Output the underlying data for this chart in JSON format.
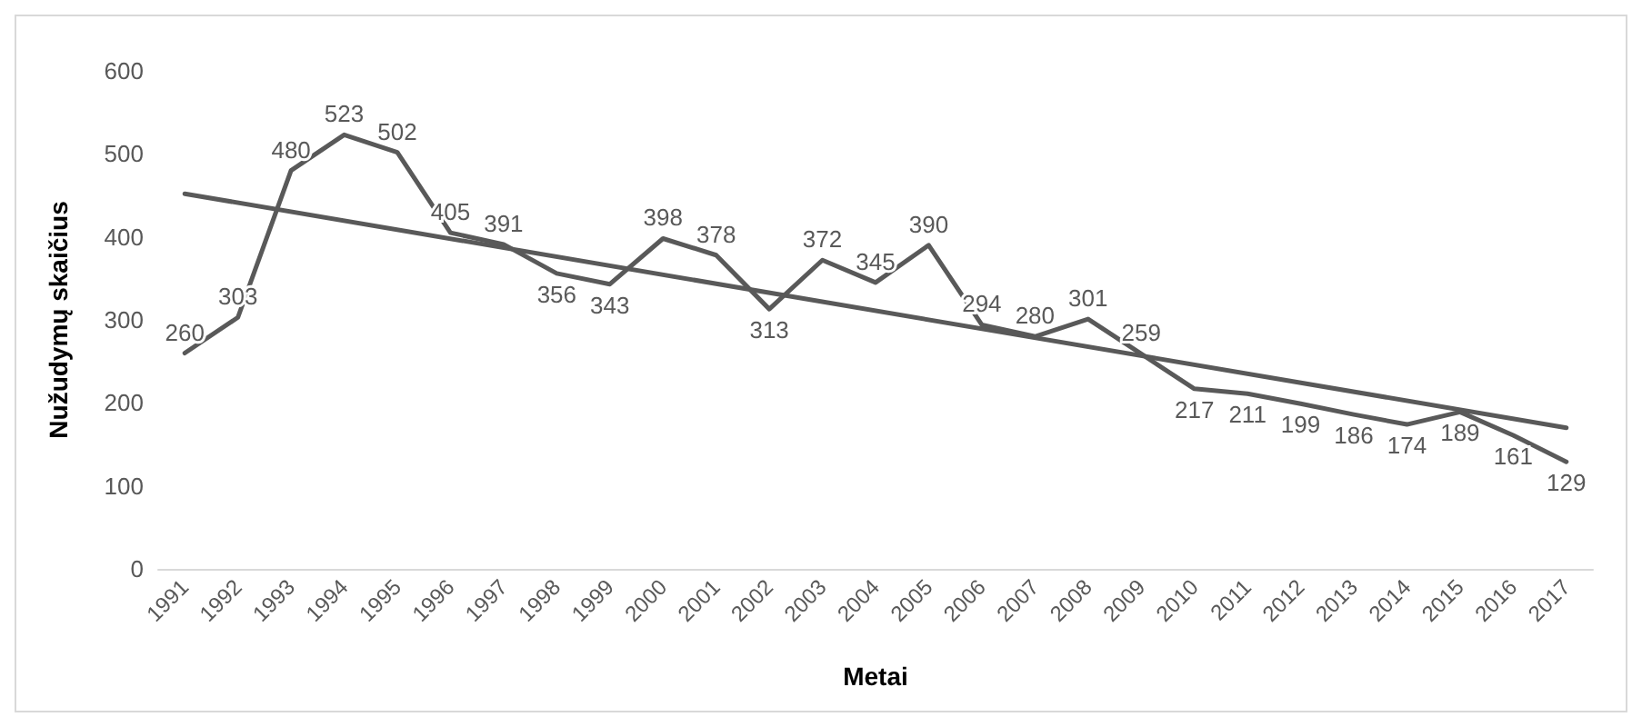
{
  "chart_data": {
    "type": "line",
    "xlabel": "Metai",
    "ylabel": "Nužudymų skaičius",
    "categories": [
      "1991",
      "1992",
      "1993",
      "1994",
      "1995",
      "1996",
      "1997",
      "1998",
      "1999",
      "2000",
      "2001",
      "2002",
      "2003",
      "2004",
      "2005",
      "2006",
      "2007",
      "2008",
      "2009",
      "2010",
      "2011",
      "2012",
      "2013",
      "2014",
      "2015",
      "2016",
      "2017"
    ],
    "series": [
      {
        "color": "#595959",
        "values": [
          260,
          303,
          480,
          523,
          502,
          405,
          391,
          356,
          343,
          398,
          378,
          313,
          372,
          345,
          390,
          294,
          280,
          301,
          259,
          217,
          211,
          199,
          186,
          174,
          189,
          161,
          129
        ],
        "value_labels": [
          "260",
          "303",
          "480",
          "523",
          "502",
          "405",
          "391",
          "356",
          "343",
          "398",
          "378",
          "313",
          "372",
          "345",
          "390",
          "294",
          "280",
          "301",
          "259",
          "217",
          "211",
          "199",
          "186",
          "174",
          "189",
          "161",
          "129"
        ]
      },
      {
        "type": "line",
        "color": "#595959",
        "values": [
          452,
          null,
          null,
          null,
          null,
          null,
          null,
          null,
          null,
          null,
          null,
          null,
          null,
          null,
          null,
          null,
          null,
          null,
          null,
          null,
          null,
          null,
          null,
          null,
          null,
          null,
          170
        ]
      }
    ],
    "ylim": [
      0,
      600
    ],
    "yticks": [
      0,
      100,
      200,
      300,
      400,
      500,
      600
    ],
    "grid": false,
    "marker": "none",
    "line_style": "solid"
  }
}
